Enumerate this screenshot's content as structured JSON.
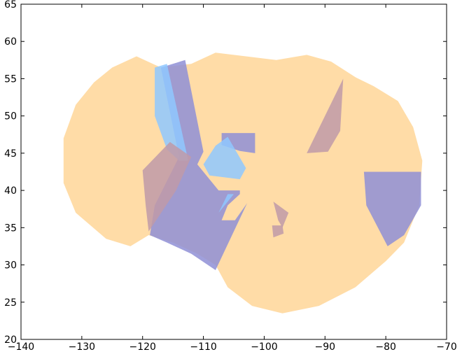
{
  "chart_data": {
    "type": "map",
    "title": "",
    "xlabel": "",
    "ylabel": "",
    "xlim": [
      -140,
      -70
    ],
    "ylim": [
      20,
      65
    ],
    "xticks": [
      -140,
      -130,
      -120,
      -110,
      -100,
      -90,
      -80,
      -70
    ],
    "yticks": [
      20,
      25,
      30,
      35,
      40,
      45,
      50,
      55,
      60,
      65
    ],
    "grid": false,
    "legend": "none",
    "colors": {
      "orange": "#ffd08a",
      "blue": "#8f8fd6",
      "light_blue": "#8fc8ff",
      "mauve": "#c09aa8"
    },
    "regions": [
      {
        "color": "orange",
        "points": [
          [
            -125,
            56.5
          ],
          [
            -121,
            58
          ],
          [
            -117,
            56.5
          ],
          [
            -112,
            57
          ],
          [
            -108,
            58.5
          ],
          [
            -103,
            58
          ],
          [
            -98,
            57.5
          ],
          [
            -93,
            58.2
          ],
          [
            -89,
            57.3
          ],
          [
            -85,
            55.2
          ],
          [
            -82,
            54
          ],
          [
            -78,
            52
          ],
          [
            -75.5,
            48.5
          ],
          [
            -74,
            44
          ],
          [
            -74.5,
            38
          ],
          [
            -77,
            33
          ],
          [
            -80,
            30.5
          ],
          [
            -85,
            27
          ],
          [
            -91,
            24.5
          ],
          [
            -97,
            23.5
          ],
          [
            -102,
            24.5
          ],
          [
            -106,
            27
          ],
          [
            -108,
            30
          ],
          [
            -111,
            31.5
          ],
          [
            -115,
            33
          ],
          [
            -119,
            34
          ],
          [
            -122,
            32.5
          ],
          [
            -126,
            33.5
          ],
          [
            -131,
            37
          ],
          [
            -133,
            41
          ],
          [
            -133,
            47
          ],
          [
            -131,
            51.5
          ],
          [
            -128,
            54.5
          ]
        ]
      },
      {
        "color": "blue",
        "points": [
          [
            -117,
            56.5
          ],
          [
            -113,
            57.5
          ],
          [
            -110,
            45.2
          ],
          [
            -111,
            43.5
          ],
          [
            -107.5,
            40
          ],
          [
            -104,
            40
          ],
          [
            -104,
            39.5
          ],
          [
            -106,
            38
          ],
          [
            -107,
            36
          ],
          [
            -104.8,
            36
          ],
          [
            -102.8,
            38.3
          ],
          [
            -108,
            29.3
          ],
          [
            -112,
            31.5
          ],
          [
            -116,
            33
          ],
          [
            -118.8,
            34
          ],
          [
            -118,
            38
          ],
          [
            -114,
            44.5
          ]
        ]
      },
      {
        "color": "blue",
        "points": [
          [
            -107,
            47.7
          ],
          [
            -101.5,
            47.7
          ],
          [
            -101.5,
            45
          ],
          [
            -104,
            45.3
          ],
          [
            -107,
            46.1
          ]
        ]
      },
      {
        "color": "blue",
        "points": [
          [
            -83.6,
            42.5
          ],
          [
            -74.2,
            42.5
          ],
          [
            -74.2,
            38
          ],
          [
            -77,
            34
          ],
          [
            -79.7,
            32.5
          ],
          [
            -83.2,
            38
          ]
        ]
      },
      {
        "color": "light_blue",
        "points": [
          [
            -118,
            56.5
          ],
          [
            -116,
            57
          ],
          [
            -112.5,
            44
          ],
          [
            -114,
            44
          ],
          [
            -116,
            45.5
          ],
          [
            -118,
            50
          ]
        ]
      },
      {
        "color": "light_blue",
        "points": [
          [
            -106,
            47.2
          ],
          [
            -108,
            46
          ],
          [
            -110,
            43.5
          ],
          [
            -109,
            42
          ],
          [
            -104,
            41.5
          ],
          [
            -103,
            43
          ]
        ]
      },
      {
        "color": "light_blue",
        "points": [
          [
            -107.5,
            37
          ],
          [
            -106,
            39.5
          ],
          [
            -105,
            39.5
          ],
          [
            -106.5,
            38
          ]
        ]
      },
      {
        "color": "mauve",
        "points": [
          [
            -120,
            42.7
          ],
          [
            -115.5,
            46.5
          ],
          [
            -112,
            44.5
          ],
          [
            -114.5,
            40
          ],
          [
            -119,
            34.5
          ],
          [
            -119.5,
            38
          ]
        ]
      },
      {
        "color": "mauve",
        "points": [
          [
            -87,
            55
          ],
          [
            -93,
            45
          ],
          [
            -89.5,
            45.2
          ],
          [
            -87.5,
            48
          ]
        ]
      },
      {
        "color": "mauve",
        "points": [
          [
            -98.5,
            38.5
          ],
          [
            -96,
            37
          ],
          [
            -97,
            35
          ],
          [
            -97.7,
            36
          ]
        ]
      },
      {
        "color": "mauve",
        "points": [
          [
            -98.7,
            35.3
          ],
          [
            -97,
            35.3
          ],
          [
            -96.8,
            34.2
          ],
          [
            -98.5,
            33.7
          ]
        ]
      }
    ]
  }
}
